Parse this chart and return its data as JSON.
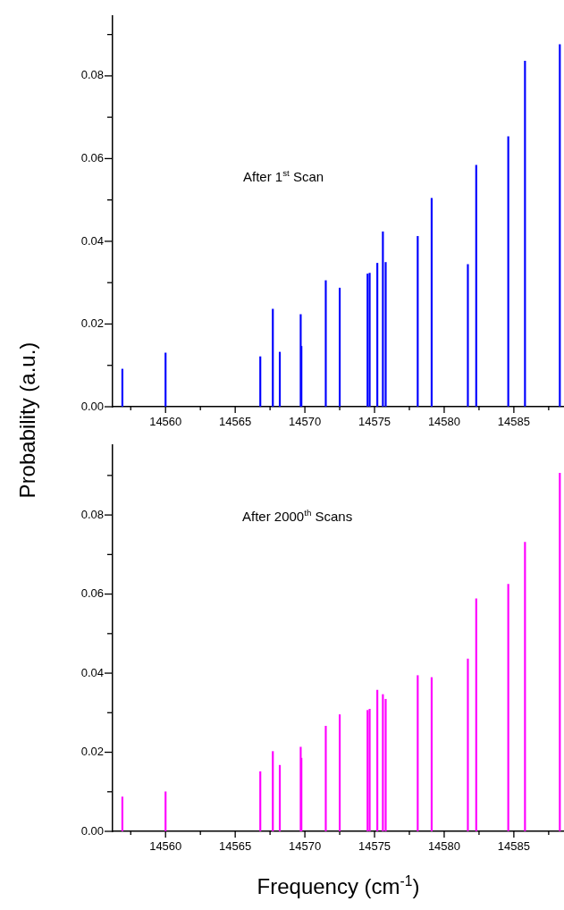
{
  "chart_data": [
    {
      "type": "bar",
      "ylabel": "Probability (a.u.)",
      "annotations": [
        "After 1$^{st}$ Scan"
      ],
      "x": [
        14556.9,
        14560.0,
        14566.8,
        14567.7,
        14568.2,
        14569.7,
        14569.75,
        14571.5,
        14572.5,
        14574.5,
        14574.65,
        14575.2,
        14575.6,
        14575.8,
        14578.1,
        14579.1,
        14581.7,
        14582.3,
        14584.6,
        14585.8,
        14588.3
      ],
      "series": [
        {
          "color": "#0000ff",
          "values": [
            0.0091,
            0.013,
            0.0121,
            0.0236,
            0.0132,
            0.0223,
            0.0146,
            0.0305,
            0.0287,
            0.0321,
            0.0323,
            0.0347,
            0.0423,
            0.0349,
            0.0412,
            0.0504,
            0.0344,
            0.0584,
            0.0653,
            0.0836,
            0.0876
          ]
        }
      ],
      "xlim": [
        14556.2,
        14588.6
      ],
      "xticks": [
        {
          "value": 14557.5,
          "label": null
        },
        14560,
        {
          "value": 14562.5,
          "label": null
        },
        14565,
        {
          "value": 14567.5,
          "label": null
        },
        14570,
        {
          "value": 14572.5,
          "label": null
        },
        14575,
        {
          "value": 14577.5,
          "label": null
        },
        14580,
        {
          "value": 14582.5,
          "label": null
        },
        14585,
        {
          "value": 14587.5,
          "label": null
        }
      ],
      "ylim": [
        0,
        0.0945
      ],
      "yticks": [
        {
          "value": 0,
          "label": "0.00"
        },
        {
          "value": 0.01,
          "label": null
        },
        {
          "value": 0.02,
          "label": "0.02"
        },
        {
          "value": 0.03,
          "label": null
        },
        {
          "value": 0.04,
          "label": "0.04"
        },
        {
          "value": 0.05,
          "label": null
        },
        {
          "value": 0.06,
          "label": "0.06"
        },
        {
          "value": 0.07,
          "label": null
        },
        {
          "value": 0.08,
          "label": "0.08"
        },
        {
          "value": 0.09,
          "label": null
        }
      ],
      "grid": false,
      "legend": false
    },
    {
      "type": "bar",
      "xlabel": "Frequency (cm$^{-1}$)",
      "annotations": [
        "After 2000$^{th}$ Scans"
      ],
      "x": [
        14556.9,
        14560.0,
        14566.8,
        14567.7,
        14568.2,
        14569.7,
        14569.75,
        14571.5,
        14572.5,
        14574.5,
        14574.65,
        14575.2,
        14575.6,
        14575.8,
        14578.1,
        14579.1,
        14581.7,
        14582.3,
        14584.6,
        14585.8,
        14588.3
      ],
      "series": [
        {
          "color": "#ff00ff",
          "values": [
            0.0087,
            0.01,
            0.0151,
            0.0202,
            0.0167,
            0.0213,
            0.0185,
            0.0266,
            0.0295,
            0.0306,
            0.0309,
            0.0357,
            0.0346,
            0.0334,
            0.0394,
            0.0389,
            0.0436,
            0.0588,
            0.0625,
            0.0731,
            0.0906
          ]
        }
      ],
      "xlim": [
        14556.2,
        14588.6
      ],
      "xticks": [
        {
          "value": 14557.5,
          "label": null
        },
        14560,
        {
          "value": 14562.5,
          "label": null
        },
        14565,
        {
          "value": 14567.5,
          "label": null
        },
        14570,
        {
          "value": 14572.5,
          "label": null
        },
        14575,
        {
          "value": 14577.5,
          "label": null
        },
        14580,
        {
          "value": 14582.5,
          "label": null
        },
        14585,
        {
          "value": 14587.5,
          "label": null
        }
      ],
      "ylim": [
        0,
        0.0977
      ],
      "yticks": [
        {
          "value": 0,
          "label": "0.00"
        },
        {
          "value": 0.01,
          "label": null
        },
        {
          "value": 0.02,
          "label": "0.02"
        },
        {
          "value": 0.03,
          "label": null
        },
        {
          "value": 0.04,
          "label": "0.04"
        },
        {
          "value": 0.05,
          "label": null
        },
        {
          "value": 0.06,
          "label": "0.06"
        },
        {
          "value": 0.07,
          "label": null
        },
        {
          "value": 0.08,
          "label": "0.08"
        },
        {
          "value": 0.09,
          "label": null
        }
      ],
      "grid": false,
      "legend": false
    }
  ]
}
